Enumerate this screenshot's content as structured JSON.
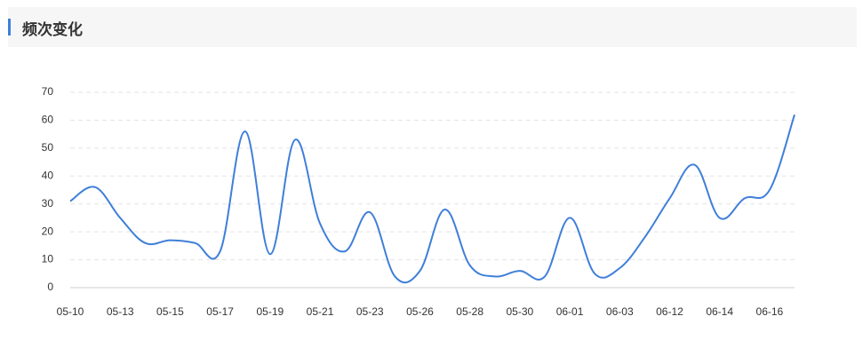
{
  "header": {
    "title": "频次变化"
  },
  "chart_data": {
    "type": "line",
    "categories": [
      "05-10",
      null,
      "05-13",
      null,
      "05-15",
      null,
      "05-17",
      null,
      "05-19",
      null,
      "05-21",
      null,
      "05-23",
      null,
      "05-26",
      null,
      "05-28",
      null,
      "05-30",
      null,
      "06-01",
      null,
      "06-03",
      null,
      "06-12",
      null,
      "06-14",
      null,
      "06-16",
      null
    ],
    "series": [
      {
        "color": "#3f7fd9",
        "values": [
          31,
          36,
          25,
          16,
          17,
          16,
          13,
          56,
          12,
          53,
          23,
          13,
          27,
          4,
          6,
          28,
          8,
          4,
          6,
          4,
          25,
          5,
          7,
          18,
          32,
          44,
          25,
          32,
          35,
          62
        ]
      }
    ],
    "ylim": [
      0,
      70
    ],
    "yticks": [
      0,
      10,
      20,
      30,
      40,
      50,
      60,
      70
    ],
    "grid": true
  }
}
